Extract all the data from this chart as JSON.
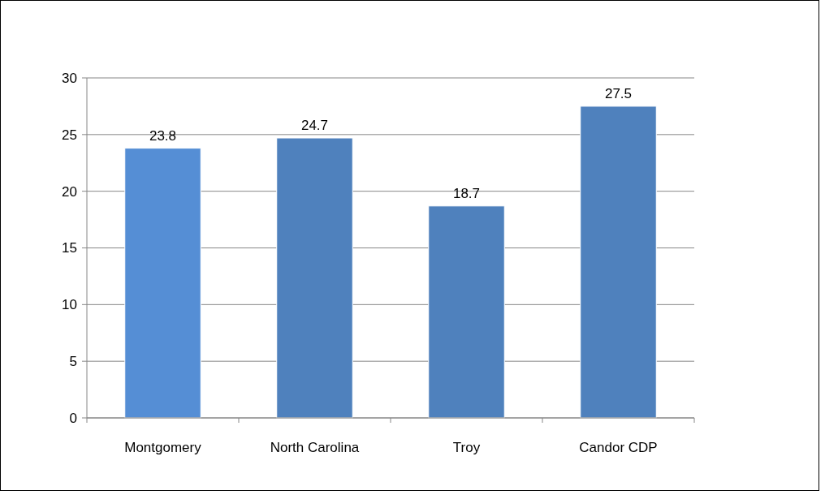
{
  "chart_data": {
    "type": "bar",
    "categories": [
      "Montgomery",
      "North Carolina",
      "Troy",
      "Candor CDP"
    ],
    "values": [
      23.8,
      24.7,
      18.7,
      27.5
    ],
    "colors": [
      "#558ed5",
      "#4f81bd",
      "#4f81bd",
      "#4f81bd"
    ],
    "ylim": [
      0,
      30
    ],
    "yticks": [
      0,
      5,
      10,
      15,
      20,
      25,
      30
    ],
    "grid": "y",
    "data_labels": true
  }
}
